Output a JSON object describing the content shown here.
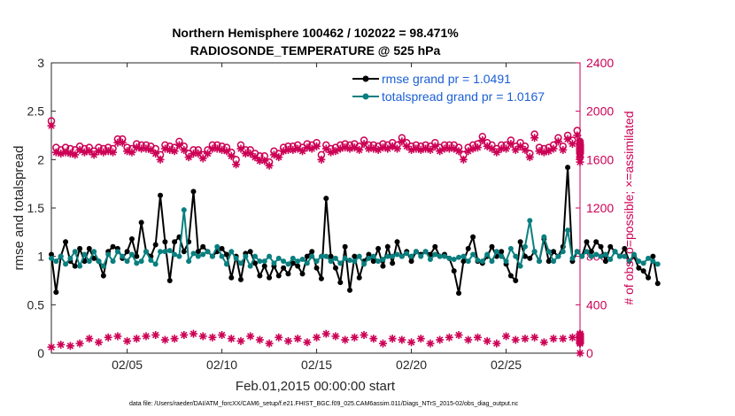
{
  "chart_data": {
    "type": "line",
    "title": "Northern Hemisphere 100462 / 102022 = 98.471%",
    "subtitle": "RADIOSONDE_TEMPERATURE @ 525 hPa",
    "xlabel": "Feb.01,2015 00:00:00 start",
    "ylabel": "rmse and totalspread",
    "y2label": "# of obs: o=possible; ×=assimilated",
    "footnote": "data file: /Users/raeder/DAI/ATM_forcXX/CAM6_setup/f.e21.FHIST_BGC.f09_025.CAM6assim.011/Diags_NTrS_2015-02/obs_diag_output.nc",
    "xlim": [
      1,
      28.9
    ],
    "ylim": [
      0,
      3
    ],
    "y2lim": [
      0,
      2400
    ],
    "xticks": [
      5,
      10,
      15,
      20,
      25
    ],
    "xtick_labels": [
      "02/05",
      "02/10",
      "02/15",
      "02/20",
      "02/25"
    ],
    "yticks": [
      0,
      0.5,
      1,
      1.5,
      2,
      2.5,
      3
    ],
    "ytick_labels": [
      "0",
      "0.5",
      "1",
      "1.5",
      "2",
      "2.5",
      "3"
    ],
    "y2ticks": [
      0,
      400,
      800,
      1200,
      1600,
      2000,
      2400
    ],
    "y2tick_labels": [
      "0",
      "400",
      "800",
      "1200",
      "1600",
      "2000",
      "2400"
    ],
    "legend": {
      "position": "top-right",
      "entries": [
        "rmse grand pr = 1.0491",
        "totalspread grand pr = 1.0167"
      ]
    },
    "x_start": 1.0,
    "x_step": 0.25,
    "series": [
      {
        "name": "rmse grand pr = 1.0491",
        "color": "#000000",
        "axis": "left",
        "values": [
          1.02,
          0.63,
          1.0,
          1.15,
          0.95,
          0.9,
          1.08,
          0.95,
          1.08,
          0.98,
          0.95,
          0.8,
          1.05,
          1.1,
          1.08,
          0.98,
          1.05,
          1.18,
          1.0,
          1.35,
          1.05,
          1.0,
          1.12,
          1.63,
          1.15,
          0.75,
          1.15,
          1.2,
          1.05,
          1.15,
          1.67,
          1.05,
          1.1,
          1.05,
          1.0,
          1.05,
          1.08,
          1.02,
          0.78,
          1.0,
          0.76,
          1.03,
          1.05,
          0.93,
          0.8,
          0.9,
          0.78,
          0.9,
          0.8,
          0.88,
          0.82,
          0.93,
          0.9,
          0.82,
          1.0,
          1.05,
          0.88,
          0.77,
          1.6,
          1.0,
          0.88,
          0.73,
          1.1,
          0.65,
          1.0,
          0.78,
          0.95,
          1.02,
          0.95,
          1.08,
          0.9,
          1.1,
          0.93,
          1.15,
          1.0,
          1.05,
          0.95,
          1.05,
          1.02,
          1.05,
          1.02,
          1.1,
          1.0,
          1.02,
          0.98,
          0.85,
          0.62,
          0.95,
          1.08,
          1.2,
          0.95,
          0.93,
          1.0,
          1.1,
          1.0,
          1.05,
          0.92,
          0.8,
          0.75,
          1.15,
          1.0,
          0.98,
          1.05,
          0.95,
          1.18,
          0.95,
          1.05,
          1.0,
          1.1,
          1.92,
          0.95,
          1.05,
          1.0,
          1.15,
          1.05,
          1.15,
          1.1,
          0.95,
          1.1,
          1.05,
          1.0,
          1.08,
          0.95,
          1.0,
          0.88,
          0.85,
          0.78,
          1.0,
          0.72
        ]
      },
      {
        "name": "totalspread grand pr = 1.0167",
        "color": "#0a7f7f",
        "axis": "left",
        "values": [
          0.98,
          0.95,
          1.0,
          0.92,
          0.98,
          1.05,
          0.9,
          1.02,
          0.95,
          1.05,
          0.95,
          0.9,
          1.02,
          0.95,
          1.05,
          1.0,
          0.95,
          1.02,
          0.93,
          0.95,
          1.05,
          0.96,
          0.92,
          1.05,
          1.05,
          1.06,
          1.02,
          1.0,
          1.48,
          0.95,
          1.03,
          1.0,
          1.02,
          1.05,
          1.0,
          1.1,
          1.0,
          0.92,
          1.05,
          0.98,
          0.93,
          1.0,
          0.9,
          1.0,
          0.95,
          0.95,
          1.0,
          0.93,
          0.98,
          0.95,
          0.92,
          0.98,
          0.95,
          0.97,
          0.93,
          1.0,
          0.95,
          1.0,
          1.0,
          0.95,
          0.98,
          0.93,
          0.98,
          0.96,
          0.95,
          1.0,
          0.92,
          0.98,
          1.0,
          0.95,
          0.97,
          1.0,
          1.0,
          1.02,
          1.0,
          1.03,
          1.0,
          1.05,
          1.0,
          1.05,
          0.97,
          1.02,
          1.0,
          1.0,
          0.98,
          0.97,
          0.99,
          1.0,
          0.95,
          1.02,
          0.96,
          0.95,
          1.02,
          0.95,
          1.05,
          1.0,
          0.95,
          1.08,
          1.0,
          0.9,
          1.1,
          1.37,
          1.05,
          0.95,
          1.2,
          1.05,
          0.95,
          1.0,
          1.05,
          1.27,
          0.98,
          1.05,
          1.0,
          1.05,
          1.0,
          1.02,
          1.0,
          1.02,
          0.97,
          1.05,
          1.0,
          1.0,
          0.95,
          1.02,
          0.95,
          0.93,
          0.98,
          0.95,
          0.92
        ]
      },
      {
        "name": "# of obs possible",
        "marker": "circle",
        "color": "#cc0055",
        "axis": "right",
        "values": [
          1920,
          1700,
          1680,
          1700,
          1690,
          1680,
          1710,
          1690,
          1700,
          1670,
          1700,
          1690,
          1700,
          1690,
          1770,
          1770,
          1700,
          1690,
          1730,
          1720,
          1720,
          1710,
          1690,
          1640,
          1720,
          1710,
          1700,
          1750,
          1710,
          1650,
          1680,
          1680,
          1640,
          1680,
          1720,
          1720,
          1710,
          1700,
          1660,
          1600,
          1720,
          1680,
          1680,
          1650,
          1630,
          1630,
          1580,
          1670,
          1650,
          1700,
          1710,
          1710,
          1720,
          1700,
          1730,
          1720,
          1740,
          1640,
          1720,
          1690,
          1700,
          1720,
          1730,
          1720,
          1730,
          1710,
          1760,
          1720,
          1720,
          1710,
          1730,
          1720,
          1740,
          1720,
          1780,
          1740,
          1710,
          1720,
          1710,
          1720,
          1710,
          1740,
          1700,
          1720,
          1720,
          1720,
          1700,
          1640,
          1700,
          1720,
          1730,
          1790,
          1740,
          1720,
          1690,
          1720,
          1720,
          1760,
          1710,
          1740,
          1710,
          1650,
          1810,
          1700,
          1690,
          1700,
          1720,
          1780,
          1710,
          1800,
          1760,
          1840,
          1720,
          1730,
          1700,
          1700,
          1690,
          1700,
          1720,
          1710,
          1730,
          1740,
          1710,
          1720,
          1750,
          1690,
          1680,
          1650,
          1620
        ]
      },
      {
        "name": "# of obs assimilated",
        "marker": "asterisk",
        "color": "#cc0055",
        "axis": "right",
        "values": [
          1880,
          1660,
          1650,
          1660,
          1650,
          1640,
          1680,
          1660,
          1670,
          1640,
          1670,
          1660,
          1670,
          1660,
          1740,
          1740,
          1670,
          1660,
          1700,
          1690,
          1690,
          1680,
          1650,
          1600,
          1690,
          1680,
          1670,
          1720,
          1680,
          1620,
          1650,
          1650,
          1610,
          1650,
          1690,
          1690,
          1680,
          1670,
          1630,
          1560,
          1690,
          1650,
          1650,
          1620,
          1590,
          1590,
          1550,
          1640,
          1620,
          1670,
          1680,
          1680,
          1690,
          1670,
          1700,
          1690,
          1710,
          1600,
          1690,
          1660,
          1670,
          1690,
          1700,
          1690,
          1700,
          1680,
          1730,
          1690,
          1690,
          1680,
          1700,
          1690,
          1710,
          1690,
          1750,
          1710,
          1680,
          1690,
          1680,
          1690,
          1680,
          1710,
          1670,
          1690,
          1690,
          1690,
          1670,
          1600,
          1670,
          1690,
          1700,
          1760,
          1710,
          1690,
          1660,
          1690,
          1690,
          1730,
          1680,
          1710,
          1680,
          1620,
          1780,
          1670,
          1660,
          1670,
          1690,
          1750,
          1680,
          1770,
          1730,
          1800,
          1690,
          1700,
          1670,
          1670,
          1660,
          1670,
          1690,
          1680,
          1700,
          1710,
          1680,
          1690,
          1720,
          1660,
          1650,
          1620,
          1580
        ]
      },
      {
        "name": "# of obs at 00Z (possible/assimilated)",
        "marker": "asterisk",
        "color": "#cc0055",
        "axis": "right",
        "x_start": 1.0,
        "x_step": 0.5,
        "values": [
          50,
          70,
          60,
          80,
          120,
          90,
          130,
          140,
          100,
          120,
          140,
          150,
          110,
          120,
          150,
          160,
          140,
          130,
          150,
          120,
          100,
          140,
          110,
          80,
          130,
          100,
          120,
          90,
          130,
          160,
          140,
          110,
          130,
          150,
          120,
          80,
          120,
          110,
          90,
          120,
          80,
          110,
          130,
          150,
          110,
          130,
          100,
          80,
          140,
          110,
          120,
          130,
          90,
          120,
          120,
          130,
          140,
          110,
          100,
          150,
          120,
          130,
          100,
          140,
          160,
          110,
          120,
          130,
          110,
          90,
          100,
          110,
          90,
          120,
          80,
          130,
          110,
          120,
          100,
          90,
          120,
          110,
          130,
          120,
          140,
          110,
          130,
          140,
          160,
          130,
          120,
          140,
          130,
          120,
          150,
          130,
          110,
          100,
          140,
          110,
          120,
          100,
          110,
          90,
          100,
          120,
          80,
          110,
          100,
          120,
          120,
          130,
          110,
          100,
          120,
          140,
          160,
          150,
          140,
          130,
          150,
          130,
          110,
          150,
          140,
          120,
          100,
          90,
          110,
          100,
          130,
          120,
          120,
          110,
          100,
          90,
          80,
          0
        ]
      }
    ]
  }
}
